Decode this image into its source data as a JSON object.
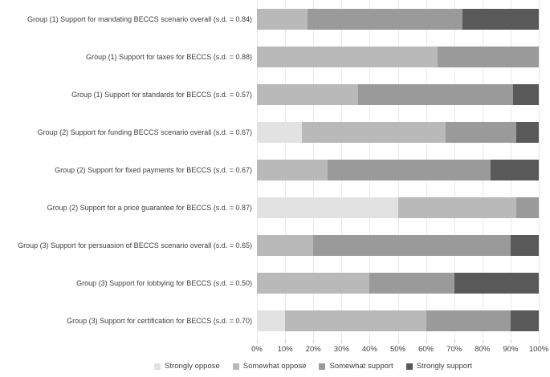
{
  "chart_data": {
    "type": "bar",
    "stacked": true,
    "orientation": "horizontal",
    "title": "",
    "xlabel": "",
    "ylabel": "",
    "xlim": [
      0,
      100
    ],
    "grid": true,
    "legend_position": "bottom",
    "x_ticks": [
      "0%",
      "10%",
      "20%",
      "30%",
      "40%",
      "50%",
      "60%",
      "70%",
      "80%",
      "90%",
      "100%"
    ],
    "categories": [
      "Group (1) Support for mandating BECCS scenario overall (s.d. = 0.84)",
      "Group (1) Support for taxes for BECCS (s.d. = 0.88)",
      "Group (1) Support for standards for BECCS (s.d. = 0.57)",
      "Group (2) Support for funding BECCS scenario overall (s.d. = 0.67)",
      "Group (2) Support for fixed payments for BECCS (s.d. = 0.67)",
      "Group (2) Support for a price guarantee for BECCS (s.d. = 0.87)",
      "Group (3) Support for persuasion of BECCS scenario overall (s.d. = 0.65)",
      "Group (3) Support for lobbying for BECCS (s.d. = 0.50)",
      "Group (3) Support for certification for BECCS (s.d. = 0.70)"
    ],
    "series": [
      {
        "name": "Strongly oppose",
        "color": "#e2e2e2",
        "values": [
          0,
          0,
          0,
          16,
          0,
          50,
          0,
          0,
          10
        ]
      },
      {
        "name": "Somewhat oppose",
        "color": "#b9b9b9",
        "values": [
          18,
          64,
          36,
          51,
          25,
          42,
          20,
          40,
          50
        ]
      },
      {
        "name": "Somewhat support",
        "color": "#9a9a9a",
        "values": [
          55,
          36,
          55,
          25,
          58,
          8,
          70,
          30,
          30
        ]
      },
      {
        "name": "Strongly support",
        "color": "#595959",
        "values": [
          27,
          0,
          9,
          8,
          17,
          0,
          10,
          30,
          10
        ]
      }
    ],
    "colors": {
      "gridline": "#e9e9e9",
      "tick": "#c9c9c9",
      "text": "#3d3d3d",
      "background": "#ffffff"
    }
  }
}
